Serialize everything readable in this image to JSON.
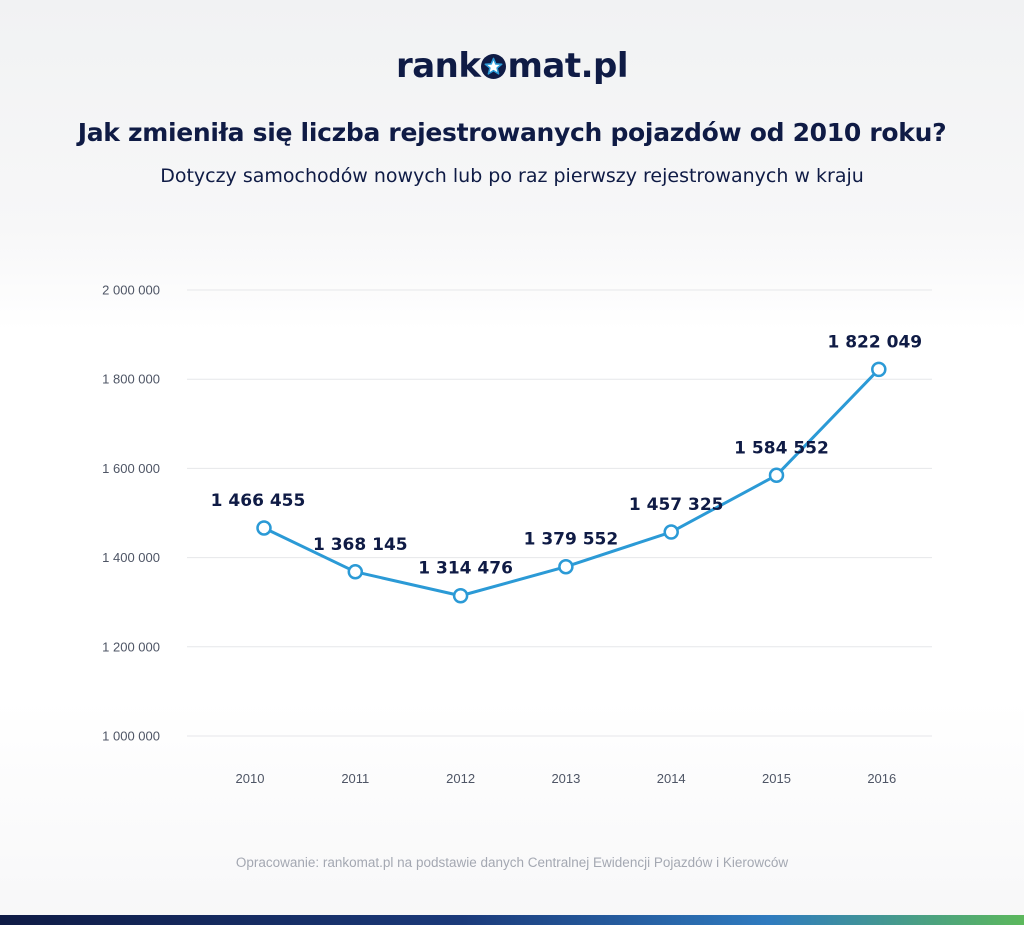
{
  "brand": {
    "logo_left": "rank",
    "logo_right": "mat.pl",
    "logo_color": "#0f1b45"
  },
  "colors": {
    "title": "#0f1b45",
    "line": "#2b9ad6",
    "grid": "#e6e7ea",
    "tick": "#4e5565",
    "label": "#0f1b45"
  },
  "chart_data": {
    "type": "line",
    "title": "Jak zmieniła się liczba rejestrowanych pojazdów od 2010 roku?",
    "subtitle": "Dotyczy samochodów nowych lub po raz pierwszy rejestrowanych w kraju",
    "xlabel": "",
    "ylabel": "",
    "categories": [
      "2010",
      "2011",
      "2012",
      "2013",
      "2014",
      "2015",
      "2016"
    ],
    "series": [
      {
        "values": [
          1466455,
          1368145,
          1314476,
          1379552,
          1457325,
          1584552,
          1822049
        ],
        "labels": [
          "1 466 455",
          "1 368 145",
          "1 314 476",
          "1 379 552",
          "1 457 325",
          "1 584 552",
          "1 822 049"
        ]
      }
    ],
    "ylim": [
      1000000,
      2000000
    ],
    "yticks": [
      2000000,
      1800000,
      1600000,
      1400000,
      1200000,
      1000000
    ],
    "ytick_labels": [
      "2 000 000",
      "1 800 000",
      "1 600 000",
      "1 400 000",
      "1 200 000",
      "1 000 000"
    ],
    "grid": true,
    "legend": "none"
  },
  "source_note": "Opracowanie: rankomat.pl na podstawie danych Centralnej Ewidencji Pojazdów i Kierowców"
}
